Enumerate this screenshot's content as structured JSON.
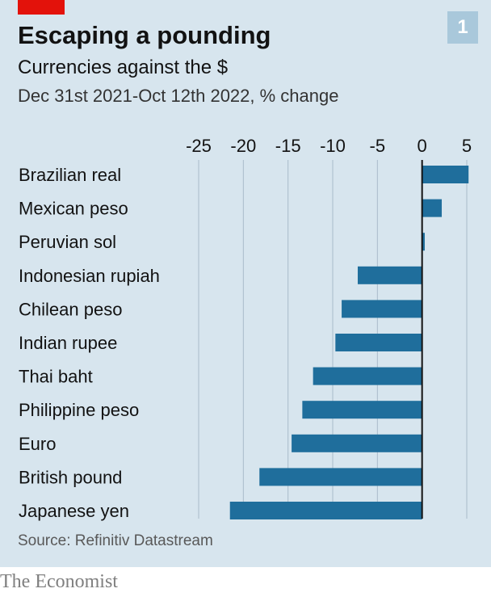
{
  "header": {
    "badge": "1",
    "title": "Escaping a pounding",
    "subtitle": "Currencies against the $",
    "subsubtitle": "Dec 31st 2021-Oct 12th 2022, % change"
  },
  "source": "Source: Refinitiv Datastream",
  "brand": "The Economist",
  "colors": {
    "bar": "#1f6e9c",
    "gridline": "#a9bccb",
    "zero_line": "#121212",
    "accent_red": "#e3120b",
    "panel_background": "#d7e5ee"
  },
  "chart_data": {
    "type": "bar",
    "orientation": "horizontal",
    "categories": [
      "Brazilian real",
      "Mexican peso",
      "Peruvian sol",
      "Indonesian rupiah",
      "Chilean peso",
      "Indian rupee",
      "Thai baht",
      "Philippine peso",
      "Euro",
      "British pound",
      "Japanese yen"
    ],
    "values": [
      5.2,
      2.2,
      0.3,
      -7.2,
      -9.0,
      -9.7,
      -12.2,
      -13.4,
      -14.6,
      -18.2,
      -21.5
    ],
    "xlim": [
      -25,
      5
    ],
    "xticks": [
      -25,
      -20,
      -15,
      -10,
      -5,
      0,
      5
    ],
    "xtick_labels": [
      "-25",
      "-20",
      "-15",
      "-10",
      "-5",
      "0",
      "5"
    ],
    "tick_position": "top",
    "grid": true
  }
}
